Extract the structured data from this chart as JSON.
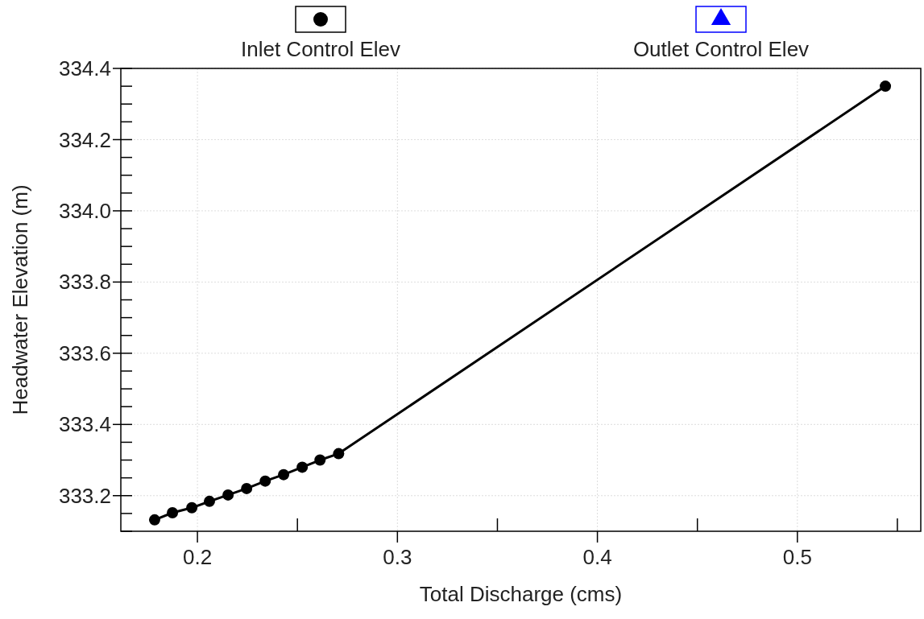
{
  "chart_data": {
    "type": "line",
    "xlabel": "Total Discharge (cms)",
    "ylabel": "Headwater Elevation (m)",
    "x": [
      0.1786,
      0.1875,
      0.1972,
      0.206,
      0.2153,
      0.2246,
      0.2339,
      0.2431,
      0.2524,
      0.2613,
      0.2706,
      0.544
    ],
    "series": [
      {
        "name": "Inlet Control Elev",
        "color": "#000000",
        "marker": "circle",
        "values": [
          333.132,
          333.152,
          333.166,
          333.184,
          333.202,
          333.22,
          333.241,
          333.259,
          333.28,
          333.3,
          333.318,
          334.35
        ]
      },
      {
        "name": "Outlet Control Elev",
        "color": "#0000ff",
        "marker": "triangle",
        "values": [
          null,
          null,
          null,
          null,
          null,
          null,
          null,
          null,
          null,
          null,
          null,
          null
        ]
      }
    ],
    "xlim": [
      0.1617,
      0.5617
    ],
    "xticks": [
      0.2,
      {
        "value": 0.25,
        "label": null
      },
      0.3,
      {
        "value": 0.35,
        "label": null
      },
      0.4,
      {
        "value": 0.45,
        "label": null
      },
      0.5,
      {
        "value": 0.55,
        "label": null
      }
    ],
    "ylim": [
      333.1,
      334.4
    ],
    "yticks": [
      {
        "value": 333.2,
        "label": "333.2"
      },
      {
        "value": 333.4,
        "label": "333.4"
      },
      {
        "value": 333.6,
        "label": "333.6"
      },
      {
        "value": 333.8,
        "label": "333.8"
      },
      {
        "value": 334.0,
        "label": "334.0"
      },
      {
        "value": 334.2,
        "label": "334.2"
      },
      {
        "value": 334.4,
        "label": "334.4"
      }
    ],
    "grid": true,
    "legend": "top",
    "line_style": "solid"
  }
}
